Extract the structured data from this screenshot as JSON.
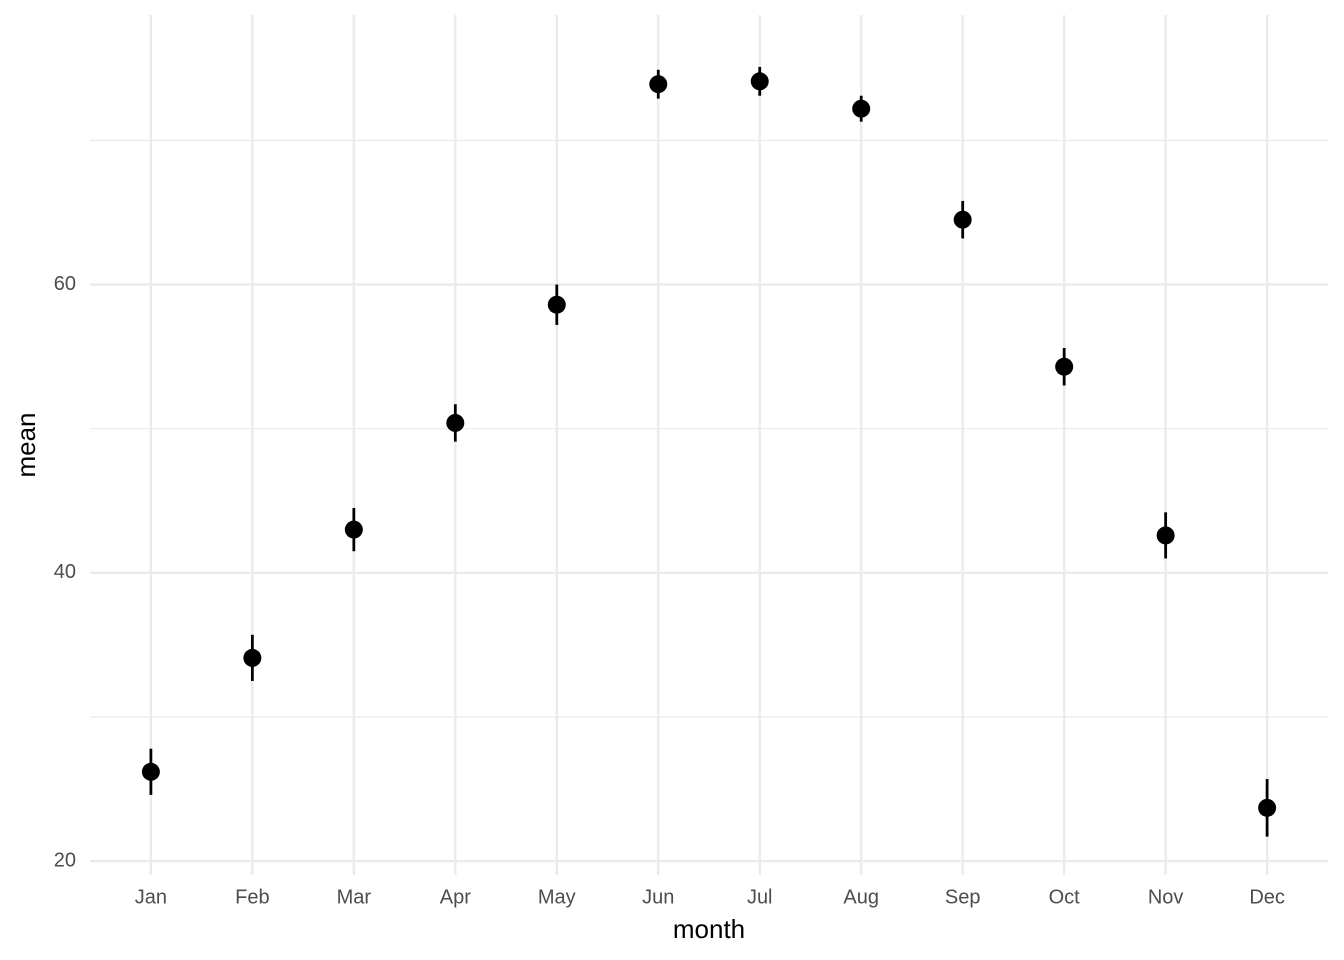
{
  "chart_data": {
    "type": "errorpoint",
    "x_label": "month",
    "y_label": "mean",
    "categories": [
      "Jan",
      "Feb",
      "Mar",
      "Apr",
      "May",
      "Jun",
      "Jul",
      "Aug",
      "Sep",
      "Oct",
      "Nov",
      "Dec"
    ],
    "values": [
      26.2,
      34.1,
      43.0,
      50.4,
      58.6,
      73.9,
      74.1,
      72.2,
      64.5,
      54.3,
      42.6,
      23.7
    ],
    "errors": [
      1.6,
      1.6,
      1.5,
      1.3,
      1.4,
      1.0,
      1.0,
      0.9,
      1.3,
      1.3,
      1.6,
      2.0
    ],
    "color": "#000000",
    "ylim": [
      19.04,
      78.7
    ],
    "yticks": [
      20,
      40,
      60
    ],
    "minor_yticks": [
      30,
      50,
      70
    ],
    "grid": true
  }
}
